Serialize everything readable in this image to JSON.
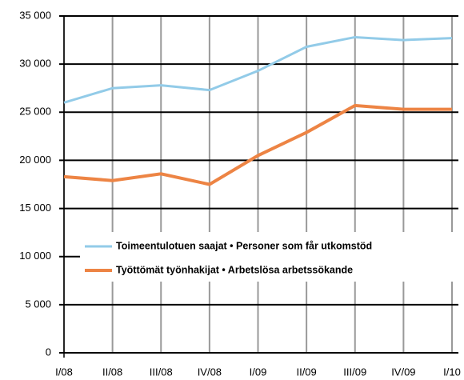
{
  "chart_data": {
    "type": "line",
    "categories": [
      "I/08",
      "II/08",
      "III/08",
      "IV/08",
      "I/09",
      "II/09",
      "III/09",
      "IV/09",
      "I/10"
    ],
    "series": [
      {
        "name": "Toimeentulotuen saajat • Personer som får utkomstöd",
        "color": "#92cbe8",
        "values": [
          26000,
          27500,
          27800,
          27300,
          29300,
          31800,
          32800,
          32500,
          32700
        ]
      },
      {
        "name": "Työttömät työnhakijat • Arbetslösa arbetssökande",
        "color": "#ed8444",
        "values": [
          18300,
          17900,
          18600,
          17500,
          20500,
          22900,
          25700,
          25300,
          25300
        ]
      }
    ],
    "ylim": [
      0,
      35000
    ],
    "yticks": [
      0,
      {
        "value": 5000,
        "label": "5 000"
      },
      {
        "value": 10000,
        "label": "10 000"
      },
      {
        "value": 15000,
        "label": "15 000"
      },
      {
        "value": 20000,
        "label": "20 000"
      },
      {
        "value": 25000,
        "label": "25 000"
      },
      {
        "value": 30000,
        "label": "30 000"
      },
      {
        "value": 35000,
        "label": "35 000"
      }
    ],
    "grid": true
  }
}
